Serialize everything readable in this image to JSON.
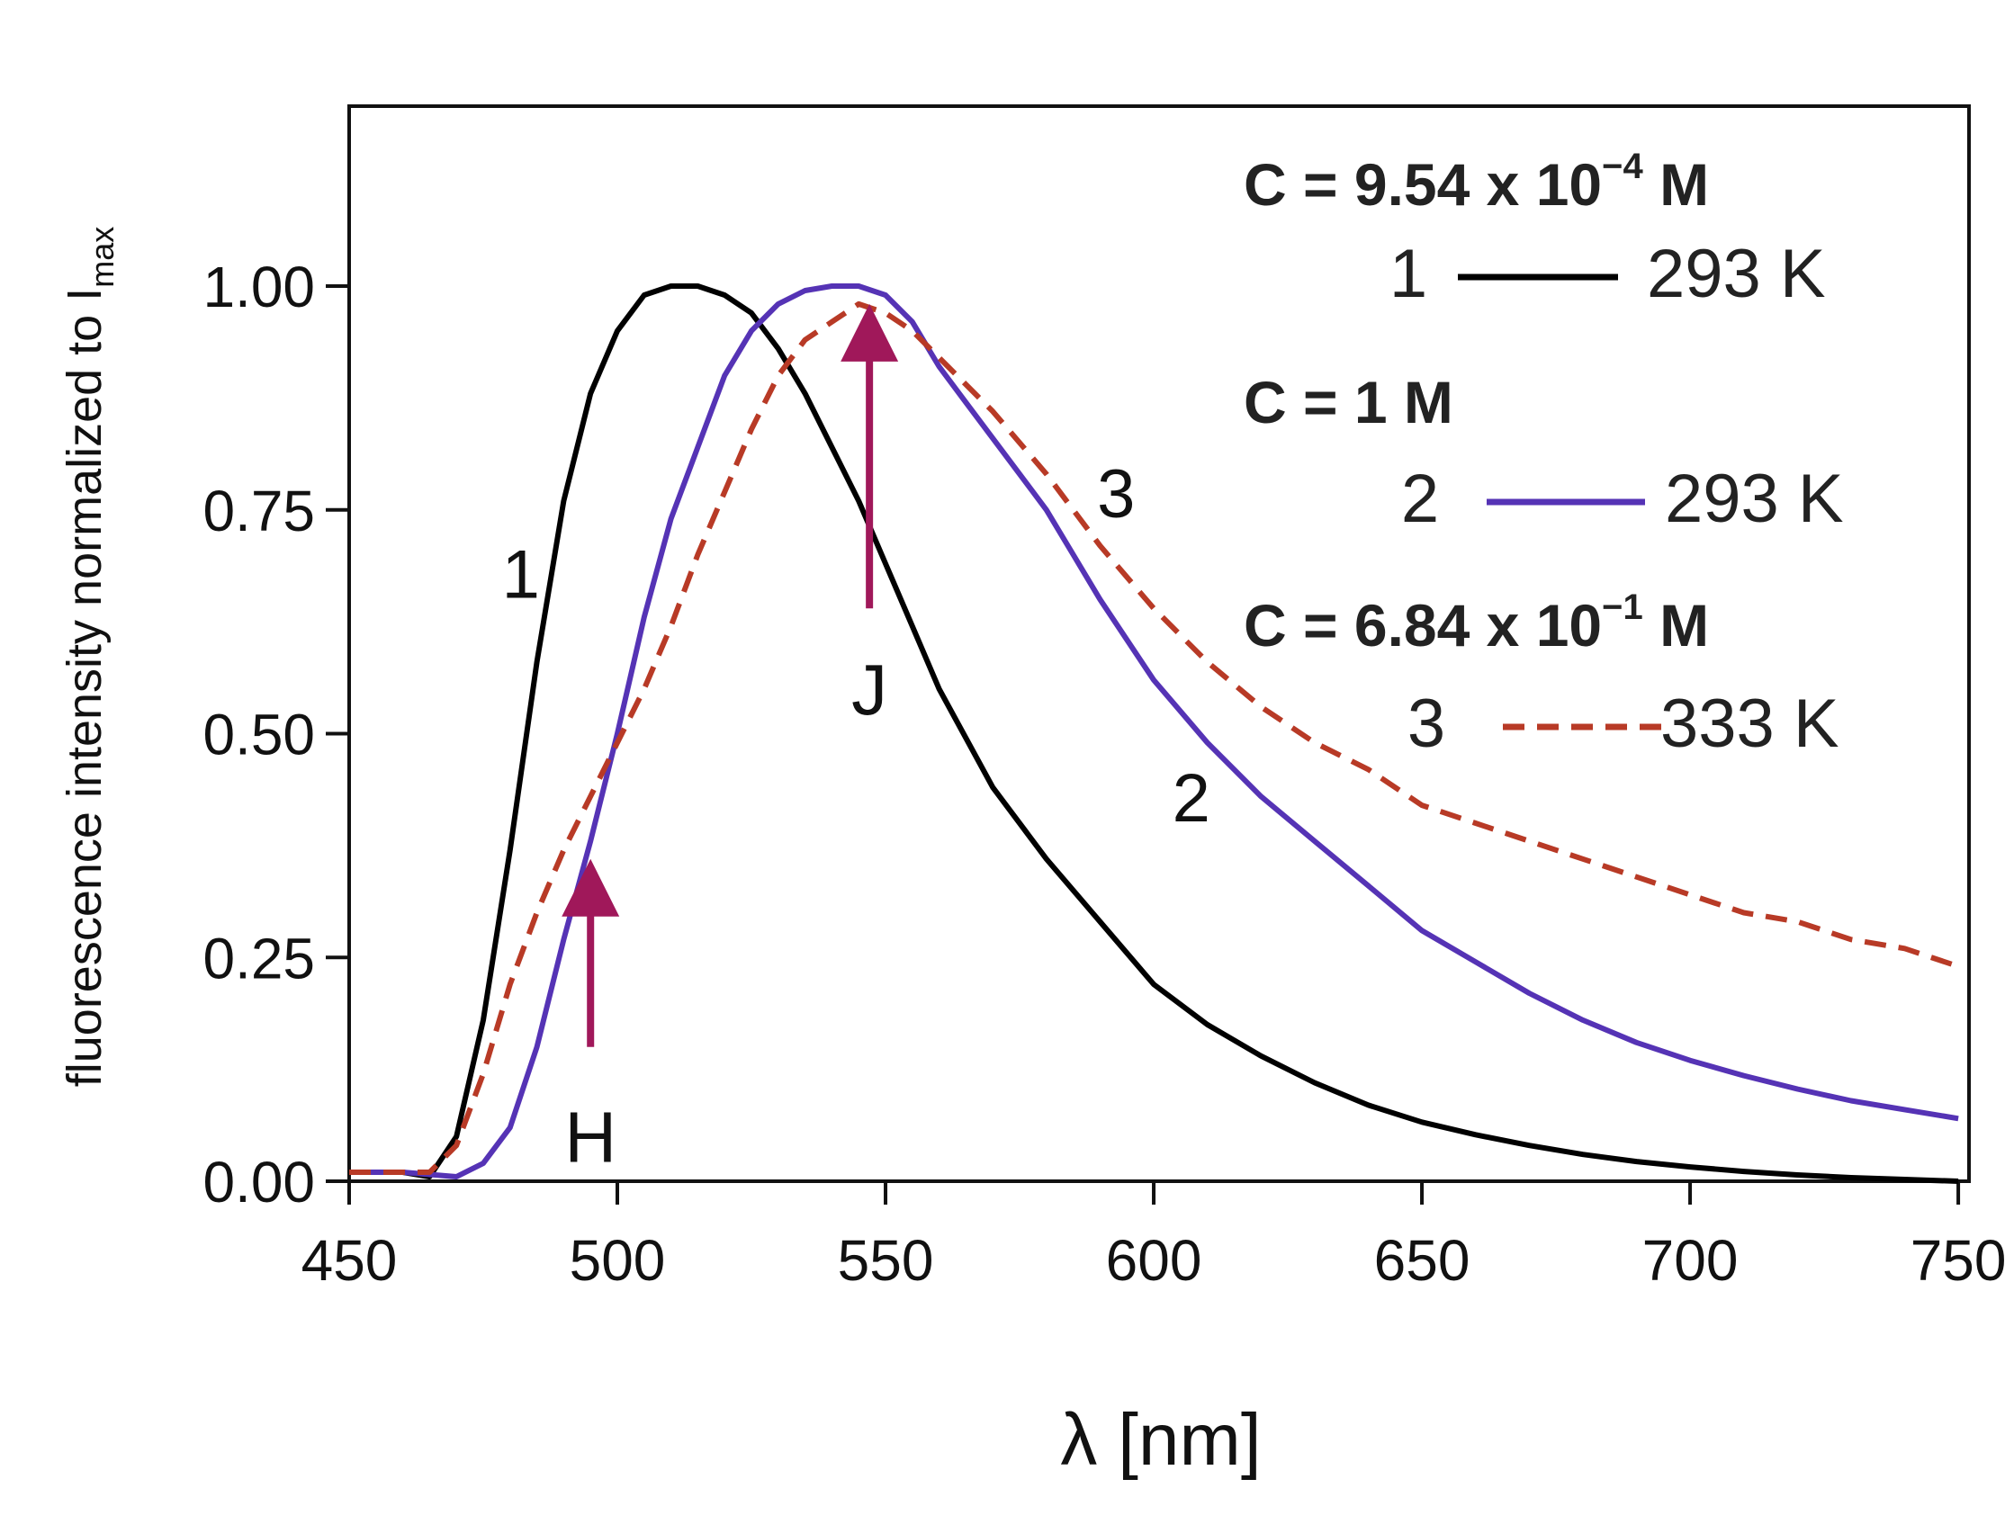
{
  "chart_data": {
    "type": "line",
    "title": "",
    "xlabel": "λ [nm]",
    "ylabel": "fluorescence intensity normalized to I",
    "ylabel_sub": "max",
    "xlim": [
      450,
      752
    ],
    "ylim": [
      0,
      1.2
    ],
    "xticks": [
      450,
      500,
      550,
      600,
      650,
      700,
      750
    ],
    "xtick_labels": [
      "450",
      "500",
      "550",
      "600",
      "650",
      "700",
      "750"
    ],
    "yticks": [
      0,
      0.25,
      0.5,
      0.75,
      1.0
    ],
    "ytick_labels": [
      "0.00",
      "0.25",
      "0.50",
      "0.75",
      "1.00"
    ],
    "series": [
      {
        "id": "1",
        "name": "293 K",
        "color": "#000000",
        "dash": "none",
        "x": [
          450,
          460,
          465,
          470,
          475,
          480,
          485,
          490,
          495,
          500,
          505,
          510,
          515,
          520,
          525,
          530,
          535,
          540,
          545,
          550,
          555,
          560,
          570,
          580,
          590,
          600,
          610,
          620,
          630,
          640,
          650,
          660,
          670,
          680,
          690,
          700,
          710,
          720,
          730,
          740,
          750
        ],
        "y": [
          0.01,
          0.01,
          0.005,
          0.05,
          0.18,
          0.37,
          0.58,
          0.76,
          0.88,
          0.95,
          0.99,
          1.0,
          1.0,
          0.99,
          0.97,
          0.93,
          0.88,
          0.82,
          0.76,
          0.69,
          0.62,
          0.55,
          0.44,
          0.36,
          0.29,
          0.22,
          0.175,
          0.14,
          0.11,
          0.085,
          0.066,
          0.052,
          0.04,
          0.03,
          0.022,
          0.016,
          0.011,
          0.007,
          0.004,
          0.002,
          0.0
        ]
      },
      {
        "id": "2",
        "name": "293 K",
        "color": "#5533b5",
        "dash": "none",
        "x": [
          450,
          460,
          470,
          475,
          480,
          485,
          490,
          495,
          500,
          505,
          510,
          515,
          520,
          525,
          530,
          535,
          540,
          545,
          550,
          555,
          560,
          565,
          570,
          575,
          580,
          585,
          590,
          600,
          610,
          620,
          630,
          640,
          650,
          660,
          670,
          680,
          690,
          700,
          710,
          720,
          730,
          740,
          750
        ],
        "y": [
          0.01,
          0.01,
          0.005,
          0.02,
          0.06,
          0.15,
          0.27,
          0.38,
          0.5,
          0.63,
          0.74,
          0.82,
          0.9,
          0.95,
          0.98,
          0.995,
          1.0,
          1.0,
          0.99,
          0.96,
          0.91,
          0.87,
          0.83,
          0.79,
          0.75,
          0.7,
          0.65,
          0.56,
          0.49,
          0.43,
          0.38,
          0.33,
          0.28,
          0.245,
          0.21,
          0.18,
          0.155,
          0.135,
          0.118,
          0.103,
          0.09,
          0.08,
          0.07
        ]
      },
      {
        "id": "3",
        "name": "333 K",
        "color": "#b83a26",
        "dash": "24 14",
        "x": [
          450,
          460,
          465,
          470,
          475,
          480,
          485,
          490,
          495,
          500,
          505,
          510,
          515,
          520,
          525,
          530,
          535,
          540,
          545,
          550,
          555,
          560,
          570,
          580,
          590,
          600,
          610,
          620,
          630,
          640,
          650,
          660,
          670,
          680,
          690,
          700,
          710,
          720,
          730,
          740,
          750
        ],
        "y": [
          0.01,
          0.01,
          0.01,
          0.04,
          0.12,
          0.22,
          0.3,
          0.37,
          0.43,
          0.49,
          0.55,
          0.62,
          0.7,
          0.77,
          0.84,
          0.9,
          0.94,
          0.96,
          0.98,
          0.97,
          0.95,
          0.92,
          0.86,
          0.79,
          0.71,
          0.64,
          0.58,
          0.53,
          0.49,
          0.46,
          0.42,
          0.4,
          0.38,
          0.36,
          0.34,
          0.32,
          0.3,
          0.29,
          0.27,
          0.26,
          0.24
        ]
      }
    ],
    "curve_labels": [
      {
        "text": "1",
        "x": 482,
        "y": 0.68
      },
      {
        "text": "2",
        "x": 607,
        "y": 0.43
      },
      {
        "text": "3",
        "x": 593,
        "y": 0.77
      }
    ],
    "band_arrows": [
      {
        "label": "H",
        "x": 495,
        "y_from": 0.15,
        "y_to": 0.36,
        "label_y": 0.05
      },
      {
        "label": "J",
        "x": 547,
        "y_from": 0.64,
        "y_to": 0.98,
        "label_y": 0.55
      }
    ],
    "arrow_color": "#a0185a",
    "legend": {
      "position": "top-right",
      "groups": [
        {
          "conc_prefix": "C = 9.54 x 10",
          "conc_exp": "−4",
          "conc_unit": " M",
          "num": "1",
          "temp": "293 K",
          "series": "1"
        },
        {
          "conc_prefix": "C = 1 M",
          "conc_exp": "",
          "conc_unit": "",
          "num": "2",
          "temp": "293 K",
          "series": "2"
        },
        {
          "conc_prefix": "C = 6.84 x 10",
          "conc_exp": "−1",
          "conc_unit": " M",
          "num": "3",
          "temp": "333 K",
          "series": "3"
        }
      ]
    }
  }
}
